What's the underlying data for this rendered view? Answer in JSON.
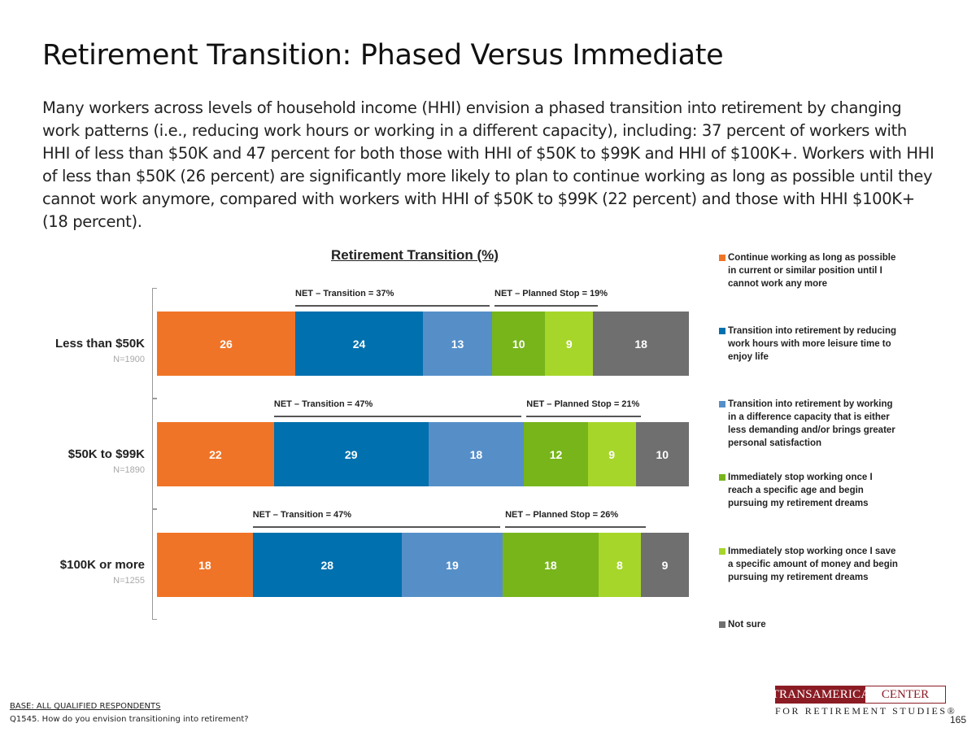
{
  "page": {
    "title": "Retirement Transition: Phased Versus Immediate",
    "summary": "Many workers across levels of household income (HHI) envision a phased transition into retirement by changing work patterns (i.e., reducing work hours or working in a different capacity), including: 37 percent of workers with HHI of less than $50K and 47 percent for both those with HHI of $50K to $99K and HHI of $100K+. Workers with HHI of less than $50K (26 percent) are significantly more likely to plan to continue working as long as possible until they cannot work anymore, compared with workers with HHI of $50K to $99K (22 percent) and those with HHI $100K+ (18 percent).",
    "base_note": "BASE: ALL QUALIFIED RESPONDENTS",
    "question_note": "Q1545. How do you envision transitioning into retirement?",
    "page_number": "165"
  },
  "logo": {
    "left": "TRANSAMERICA",
    "right": "CENTER",
    "sub": "FOR RETIREMENT STUDIES®"
  },
  "chart_data": {
    "type": "bar",
    "orientation": "horizontal",
    "stacked": true,
    "title": "Retirement Transition (%)",
    "categories": [
      "Less than $50K",
      "$50K to $99K",
      "$100K or more"
    ],
    "sample_sizes": [
      "N=1900",
      "N=1890",
      "N=1255"
    ],
    "series": [
      {
        "name": "Continue working as long as possible in current or similar position until I cannot work any more",
        "color": "#f07427",
        "values": [
          26,
          22,
          18
        ]
      },
      {
        "name": "Transition into retirement by reducing work hours with more leisure time to enjoy life",
        "color": "#0070ae",
        "values": [
          24,
          29,
          28
        ]
      },
      {
        "name": "Transition into retirement by working in a difference capacity that is either less demanding and/or brings greater personal satisfaction",
        "color": "#568fc8",
        "values": [
          13,
          18,
          19
        ]
      },
      {
        "name": "Immediately stop working once I reach a specific age and begin pursuing my retirement dreams",
        "color": "#77b51b",
        "values": [
          10,
          12,
          18
        ]
      },
      {
        "name": "Immediately stop working once I save a specific amount of money and begin pursuing my retirement dreams",
        "color": "#a6d62a",
        "values": [
          9,
          9,
          8
        ]
      },
      {
        "name": "Not sure",
        "color": "#6f6f6f",
        "values": [
          18,
          10,
          9
        ]
      }
    ],
    "net_annotations": [
      {
        "transition": "NET – Transition = 37%",
        "planned_stop": "NET – Planned Stop = 19%"
      },
      {
        "transition": "NET – Transition = 47%",
        "planned_stop": "NET – Planned Stop = 21%"
      },
      {
        "transition": "NET – Transition = 47%",
        "planned_stop": "NET – Planned Stop = 26%"
      }
    ],
    "legend_position": "right"
  }
}
